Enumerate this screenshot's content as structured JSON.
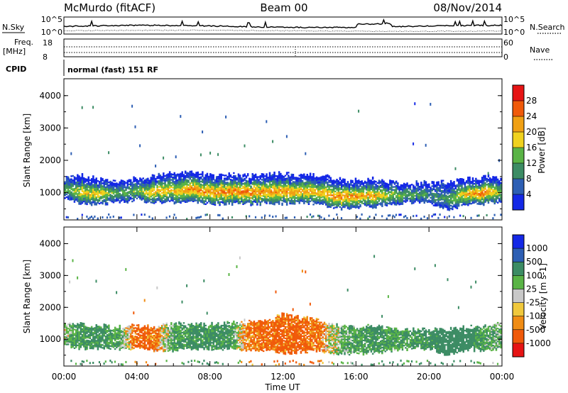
{
  "header": {
    "station": "McMurdo (fitACF)",
    "beam": "Beam 00",
    "date": "08/Nov/2014"
  },
  "summary_panel": {
    "nsky_label": "N.Sky",
    "nsearch_label": "N.Search",
    "noise_ticks": [
      "10^5",
      "10^0"
    ],
    "freq_label_1": "Freq.",
    "freq_label_2": "[MHz]",
    "freq_ticks": [
      "18",
      "8"
    ],
    "nave_label": "Nave",
    "nave_ticks": [
      "60",
      "0"
    ],
    "cpid_label": "CPID",
    "cpid_value": "normal (fast) 151 RF"
  },
  "colors": {
    "power": [
      "#1428e6",
      "#2d5fb4",
      "#3c8c64",
      "#5ab446",
      "#f0d21e",
      "#f0a014",
      "#f05a0a",
      "#e61414"
    ],
    "velocity": [
      "#e61414",
      "#f05a0a",
      "#f08c14",
      "#f0c83c",
      "#c8c8c8",
      "#5ab446",
      "#3c8c64",
      "#2d5fb4",
      "#1428e6"
    ]
  },
  "chart_data": [
    {
      "type": "heatmap",
      "parameter": "power",
      "xlabel": "",
      "ylabel": "Slant Range [km]",
      "xlim": [
        0,
        24
      ],
      "ylim": [
        180,
        4500
      ],
      "yticks": [
        "1000",
        "2000",
        "3000",
        "4000"
      ],
      "colorbar_label": "Power [dB]",
      "colorbar_ticks": [
        "4",
        "8",
        "12",
        "16",
        "20",
        "24",
        "28"
      ],
      "main_band": {
        "x_hours": [
          0,
          1,
          2,
          3,
          4,
          5,
          6,
          7,
          8,
          9,
          10,
          11,
          12,
          13,
          14,
          15,
          16,
          17,
          18,
          19,
          20,
          21,
          22,
          23,
          24
        ],
        "bottom_km": [
          800,
          650,
          650,
          700,
          750,
          700,
          700,
          700,
          650,
          650,
          650,
          650,
          650,
          700,
          650,
          500,
          550,
          550,
          650,
          700,
          700,
          450,
          650,
          650,
          700
        ],
        "top_km": [
          1500,
          1500,
          1400,
          1350,
          1400,
          1500,
          1600,
          1600,
          1550,
          1550,
          1500,
          1550,
          1550,
          1500,
          1500,
          1400,
          1350,
          1400,
          1300,
          1250,
          1300,
          1300,
          1400,
          1450,
          1450
        ],
        "peak_db": [
          14,
          22,
          22,
          14,
          18,
          24,
          22,
          26,
          26,
          28,
          28,
          26,
          26,
          24,
          24,
          26,
          26,
          24,
          18,
          16,
          12,
          14,
          24,
          28,
          16
        ]
      }
    },
    {
      "type": "heatmap",
      "parameter": "velocity",
      "xlabel": "Time UT",
      "ylabel": "Slant Range [km]",
      "xlim": [
        0,
        24
      ],
      "ylim": [
        180,
        4500
      ],
      "xticks": [
        "00:00",
        "04:00",
        "08:00",
        "12:00",
        "16:00",
        "20:00",
        "00:00"
      ],
      "yticks": [
        "1000",
        "2000",
        "3000",
        "4000"
      ],
      "colorbar_label": "Velocity [m s-1]",
      "colorbar_ticks": [
        "1000",
        "500",
        "100",
        "25",
        "-25",
        "-100",
        "-500",
        "-1000"
      ],
      "main_band": {
        "x_hours": [
          0,
          1,
          2,
          3,
          4,
          5,
          6,
          7,
          8,
          9,
          10,
          11,
          12,
          13,
          14,
          15,
          16,
          17,
          18,
          19,
          20,
          21,
          22,
          23,
          24
        ],
        "bottom_km": [
          800,
          700,
          700,
          700,
          700,
          650,
          650,
          700,
          700,
          700,
          650,
          650,
          550,
          600,
          650,
          500,
          550,
          550,
          650,
          700,
          700,
          500,
          650,
          650,
          700
        ],
        "top_km": [
          1500,
          1450,
          1400,
          1350,
          1400,
          1400,
          1450,
          1450,
          1450,
          1500,
          1500,
          1550,
          1750,
          1650,
          1550,
          1400,
          1350,
          1400,
          1300,
          1250,
          1300,
          1300,
          1350,
          1400,
          1450
        ],
        "dominant_ms": [
          30,
          150,
          150,
          100,
          -150,
          -100,
          100,
          150,
          150,
          150,
          -100,
          -120,
          -150,
          -150,
          -100,
          50,
          100,
          150,
          100,
          120,
          150,
          200,
          200,
          100,
          50
        ]
      }
    }
  ]
}
